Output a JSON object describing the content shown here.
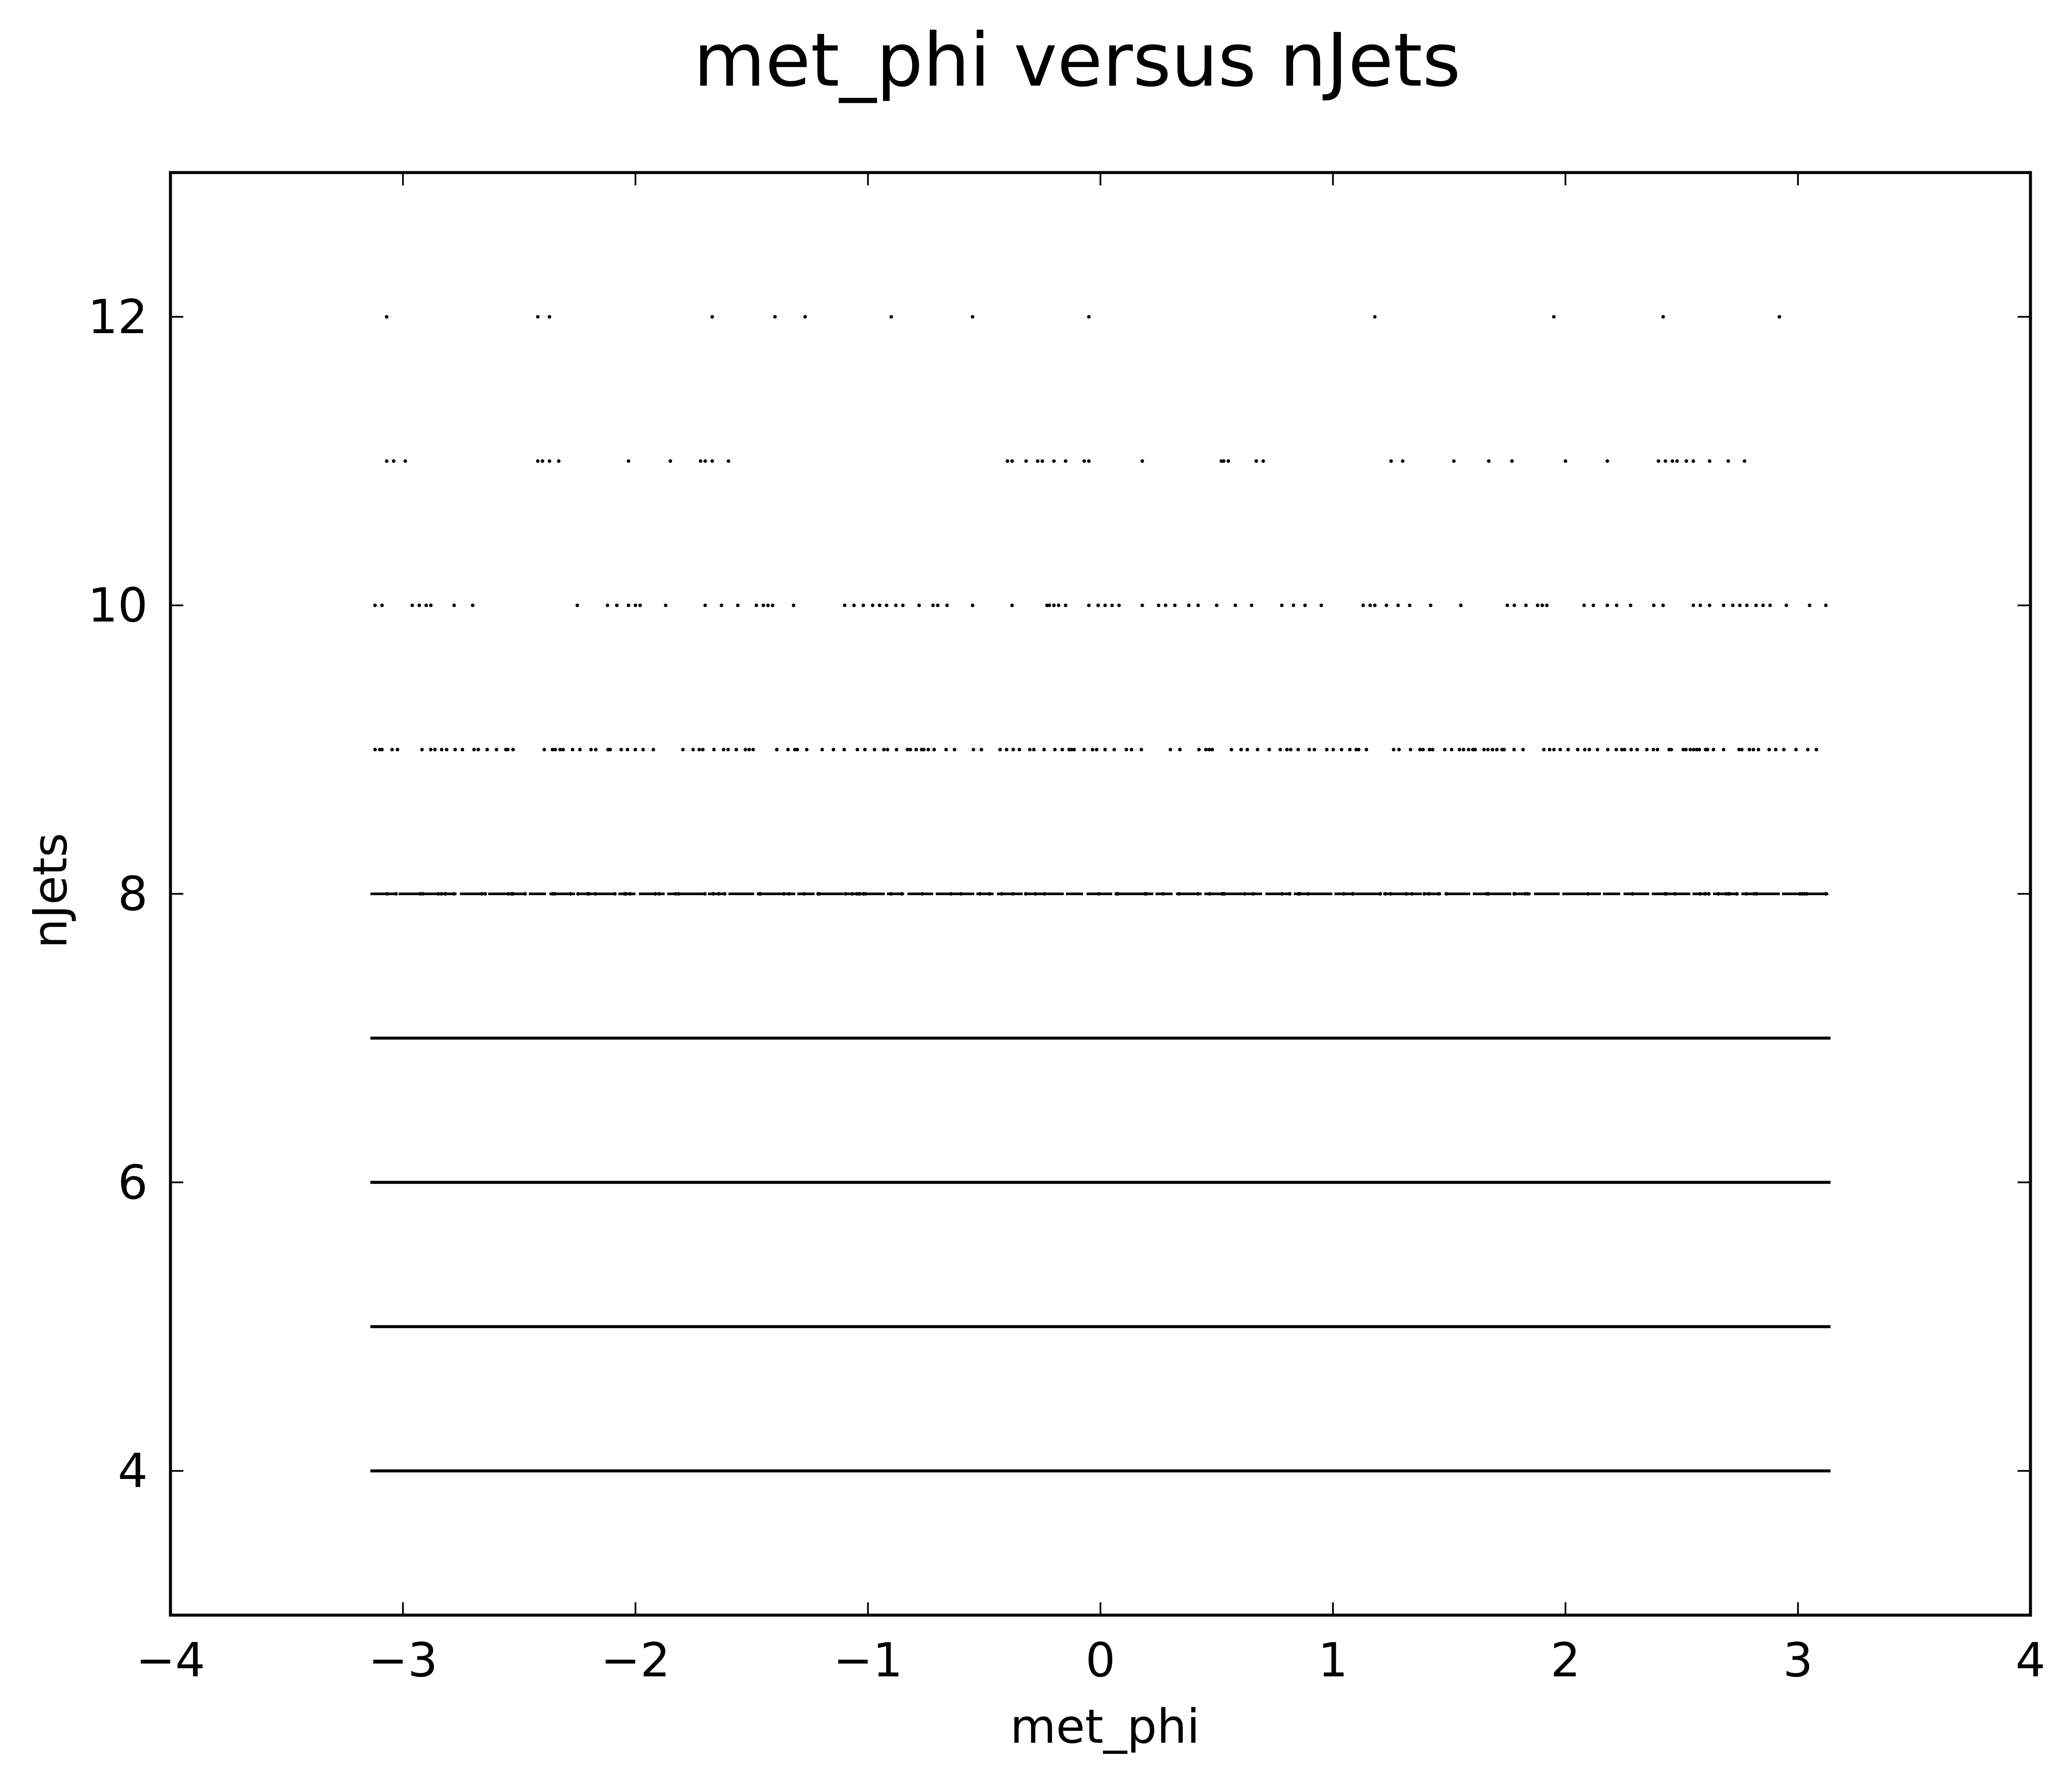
{
  "chart_data": {
    "type": "scatter",
    "title": "met_phi versus nJets",
    "xlabel": "met_phi",
    "ylabel": "nJets",
    "xlim": [
      -4,
      4
    ],
    "ylim": [
      3,
      13
    ],
    "xticks": [
      -4,
      -3,
      -2,
      -1,
      0,
      1,
      2,
      3,
      4
    ],
    "xtick_labels": [
      "−4",
      "−3",
      "−2",
      "−1",
      "0",
      "1",
      "2",
      "3",
      "4"
    ],
    "yticks": [
      4,
      6,
      8,
      10,
      12
    ],
    "ytick_labels": [
      "4",
      "6",
      "8",
      "10",
      "12"
    ],
    "grid": false,
    "legend": "none",
    "marker_color": "#000000",
    "series": [
      {
        "y": 4,
        "x_range": [
          -3.14,
          3.14
        ],
        "density": "continuous"
      },
      {
        "y": 5,
        "x_range": [
          -3.14,
          3.14
        ],
        "density": "continuous"
      },
      {
        "y": 6,
        "x_range": [
          -3.14,
          3.14
        ],
        "density": "continuous"
      },
      {
        "y": 7,
        "x_range": [
          -3.14,
          3.14
        ],
        "density": "continuous"
      },
      {
        "y": 8,
        "x_range": [
          -3.14,
          3.14
        ],
        "density": "dense"
      },
      {
        "y": 9,
        "x_range": [
          -3.12,
          3.1
        ],
        "density": "moderate"
      },
      {
        "y": 10,
        "x": [
          -3.12,
          -3.09,
          -2.96,
          -2.93,
          -2.9,
          -2.88,
          -2.78,
          -2.7,
          -2.25,
          -2.12,
          -2.08,
          -2.03,
          -2.0,
          -1.98,
          -1.87,
          -1.7,
          -1.63,
          -1.56,
          -1.48,
          -1.45,
          -1.43,
          -1.41,
          -1.32,
          -1.1,
          -1.06,
          -1.02,
          -0.98,
          -0.95,
          -0.92,
          -0.88,
          -0.85,
          -0.78,
          -0.72,
          -0.7,
          -0.66,
          -0.55,
          -0.38,
          -0.23,
          -0.22,
          -0.2,
          -0.18,
          -0.15,
          -0.05,
          -0.01,
          0.02,
          0.05,
          0.08,
          0.18,
          0.25,
          0.28,
          0.32,
          0.38,
          0.42,
          0.5,
          0.58,
          0.65,
          0.78,
          0.83,
          0.88,
          0.95,
          1.13,
          1.16,
          1.18,
          1.23,
          1.28,
          1.33,
          1.42,
          1.55,
          1.75,
          1.78,
          1.83,
          1.88,
          1.9,
          1.92,
          2.08,
          2.12,
          2.18,
          2.22,
          2.28,
          2.38,
          2.42,
          2.55,
          2.58,
          2.62,
          2.68,
          2.72,
          2.75,
          2.78,
          2.82,
          2.85,
          2.88,
          2.95,
          3.05,
          3.12
        ]
      },
      {
        "y": 11,
        "x": [
          -3.07,
          -3.04,
          -2.99,
          -2.42,
          -2.4,
          -2.37,
          -2.33,
          -2.03,
          -1.85,
          -1.72,
          -1.7,
          -1.67,
          -1.6,
          -0.4,
          -0.38,
          -0.32,
          -0.27,
          -0.25,
          -0.2,
          -0.15,
          -0.07,
          -0.05,
          0.18,
          0.52,
          0.53,
          0.55,
          0.67,
          0.7,
          1.25,
          1.3,
          1.52,
          1.67,
          1.77,
          2.0,
          2.18,
          2.4,
          2.43,
          2.46,
          2.48,
          2.52,
          2.55,
          2.62,
          2.7,
          2.77
        ]
      },
      {
        "y": 12,
        "x": [
          -3.07,
          -2.42,
          -2.37,
          -1.67,
          -1.4,
          -1.27,
          -0.9,
          -0.55,
          -0.05,
          1.18,
          1.95,
          2.42,
          2.92
        ]
      }
    ]
  }
}
